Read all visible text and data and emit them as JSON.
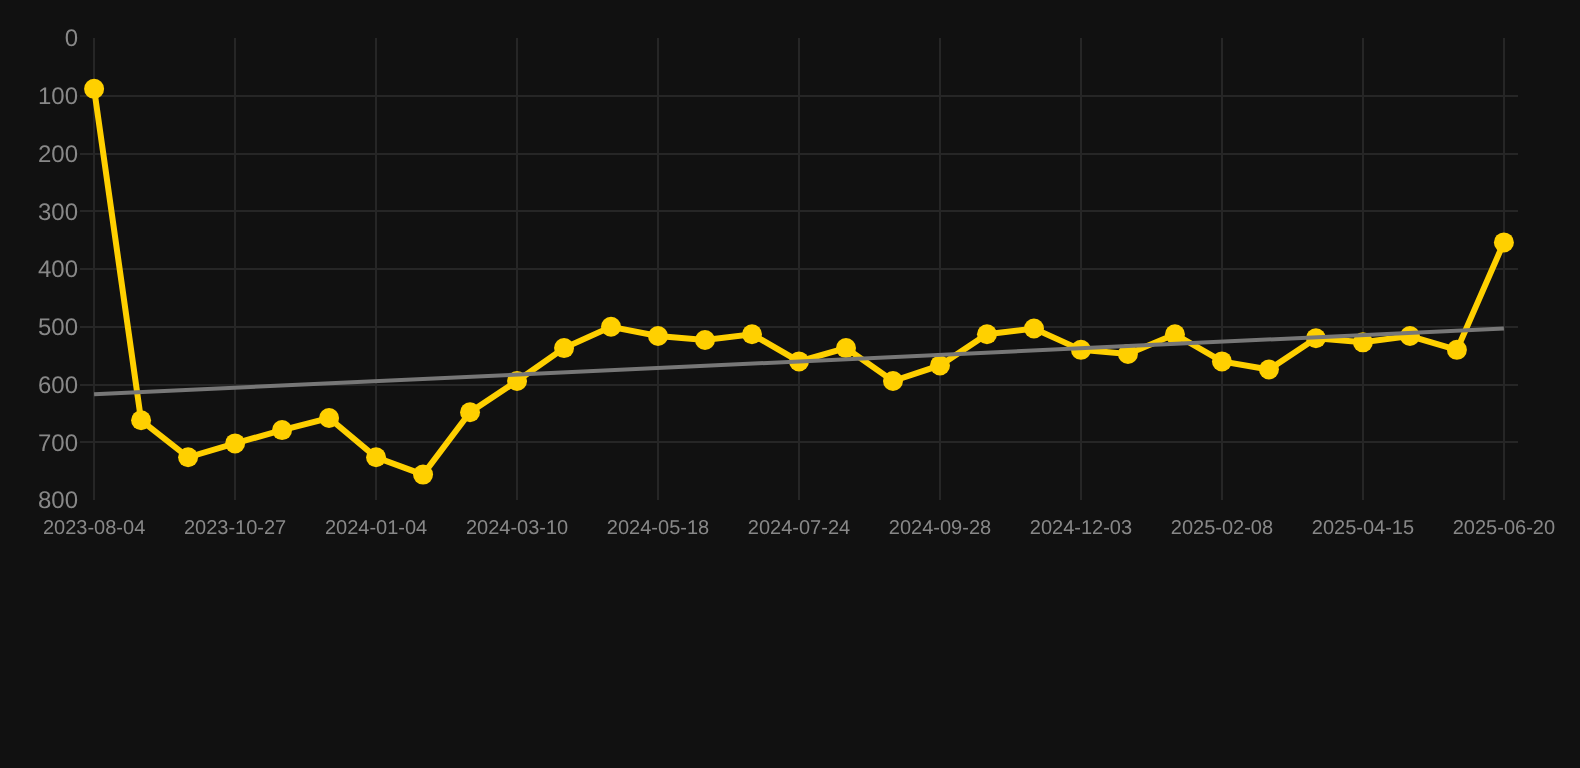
{
  "chart_data": {
    "type": "line",
    "categories": [
      "2023-08-04",
      null,
      null,
      "2023-10-27",
      null,
      null,
      "2024-01-04",
      null,
      null,
      "2024-03-10",
      null,
      null,
      "2024-05-18",
      null,
      null,
      "2024-07-24",
      null,
      null,
      "2024-09-28",
      null,
      null,
      "2024-12-03",
      null,
      null,
      "2025-02-08",
      null,
      null,
      "2025-04-15",
      null,
      null,
      "2025-06-20"
    ],
    "series": [
      {
        "color": "#ffd000",
        "marker": "circle",
        "values": [
          88,
          662,
          726,
          702,
          679,
          658,
          726,
          756,
          648,
          594,
          537,
          500,
          516,
          523,
          513,
          560,
          537,
          594,
          567,
          513,
          503,
          540,
          547,
          513,
          560,
          574,
          520,
          527,
          516,
          540,
          354
        ]
      },
      {
        "color": "#777777",
        "marker": "none",
        "values": [
          617,
          null,
          null,
          null,
          null,
          null,
          null,
          null,
          null,
          null,
          null,
          null,
          null,
          null,
          null,
          null,
          null,
          null,
          null,
          null,
          null,
          null,
          null,
          null,
          null,
          null,
          null,
          null,
          null,
          null,
          503
        ]
      }
    ],
    "ylim": [
      800,
      0
    ],
    "yticks": [
      0,
      100,
      200,
      300,
      400,
      500,
      600,
      700,
      800
    ],
    "grid": true
  }
}
